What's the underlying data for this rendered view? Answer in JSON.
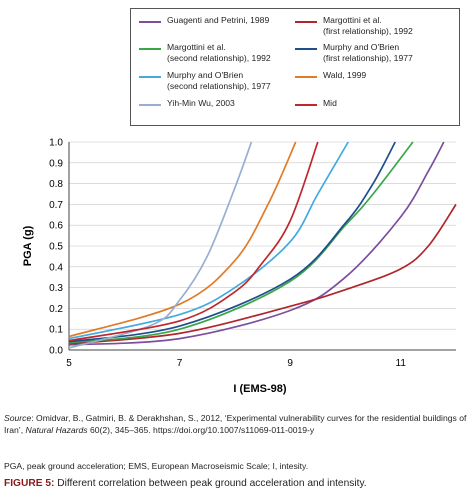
{
  "chart_data": {
    "type": "line",
    "xlabel": "I (EMS-98)",
    "ylabel": "PGA (g)",
    "xlim": [
      5,
      12
    ],
    "ylim": [
      0,
      1.0
    ],
    "xticks": [
      "5",
      "7",
      "9",
      "11"
    ],
    "yticks": [
      "0.0",
      "0.1",
      "0.2",
      "0.3",
      "0.4",
      "0.5",
      "0.6",
      "0.7",
      "0.8",
      "0.9",
      "1.0"
    ],
    "grid": true,
    "legend_position": "top-right",
    "series": [
      {
        "name": "Guagenti and Petrini, 1989",
        "color": "#7b4f9e",
        "x": [
          5,
          7,
          9,
          10,
          11,
          11.5,
          11.78
        ],
        "y": [
          0.025,
          0.055,
          0.19,
          0.35,
          0.64,
          0.86,
          1.0
        ]
      },
      {
        "name": "Margottini et al.\n(first relationship), 1992",
        "color": "#b0262c",
        "x": [
          5,
          7,
          9,
          10,
          11,
          11.5,
          12
        ],
        "y": [
          0.03,
          0.08,
          0.21,
          0.29,
          0.39,
          0.5,
          0.7
        ]
      },
      {
        "name": "Margottini et al.\n(second relationship), 1992",
        "color": "#3aa64a",
        "x": [
          5,
          7,
          9,
          10,
          10.5,
          11.22
        ],
        "y": [
          0.035,
          0.1,
          0.33,
          0.6,
          0.75,
          1.0
        ]
      },
      {
        "name": "Murphy and O'Brien\n(first relationship), 1977",
        "color": "#1f4e8c",
        "x": [
          5,
          7,
          9,
          10,
          10.5,
          10.9
        ],
        "y": [
          0.04,
          0.115,
          0.34,
          0.61,
          0.8,
          1.0
        ]
      },
      {
        "name": "Murphy and O'Brien\n(second relationship), 1977",
        "color": "#42a9e1",
        "x": [
          5,
          7,
          8,
          9,
          9.5,
          10.05
        ],
        "y": [
          0.055,
          0.17,
          0.3,
          0.52,
          0.75,
          1.0
        ]
      },
      {
        "name": "Wald, 1999",
        "color": "#e07b28",
        "x": [
          5,
          7,
          8,
          8.6,
          9.1
        ],
        "y": [
          0.065,
          0.22,
          0.43,
          0.7,
          1.0
        ]
      },
      {
        "name": "Yih-Min Wu, 2003",
        "color": "#9aaed0",
        "x": [
          5,
          6.5,
          7,
          7.5,
          8,
          8.3
        ],
        "y": [
          0.01,
          0.12,
          0.24,
          0.45,
          0.78,
          1.0
        ]
      },
      {
        "name": "Mid",
        "color": "#c0272d",
        "x": [
          5,
          7,
          8,
          8.5,
          9,
          9.5
        ],
        "y": [
          0.045,
          0.14,
          0.28,
          0.42,
          0.62,
          1.0
        ]
      }
    ]
  },
  "caption": {
    "source_label": "Source",
    "source_pre": ": Omidvar, B., Gatmiri, B. & Derakhshan, S., 2012, ‘Experimental vulnerability curves for the residential buildings of Iran’, ",
    "source_journal": "Natural Hazards",
    "source_post": " 60(2), 345–365. https://doi.org/10.1007/s11069-011-0019-y",
    "abbreviations": "PGA, peak ground acceleration; EMS, European Macroseismic Scale; I, intesity.",
    "figure_label": "FIGURE 5:",
    "figure_text": " Different correlation between peak ground acceleration and intensity."
  }
}
